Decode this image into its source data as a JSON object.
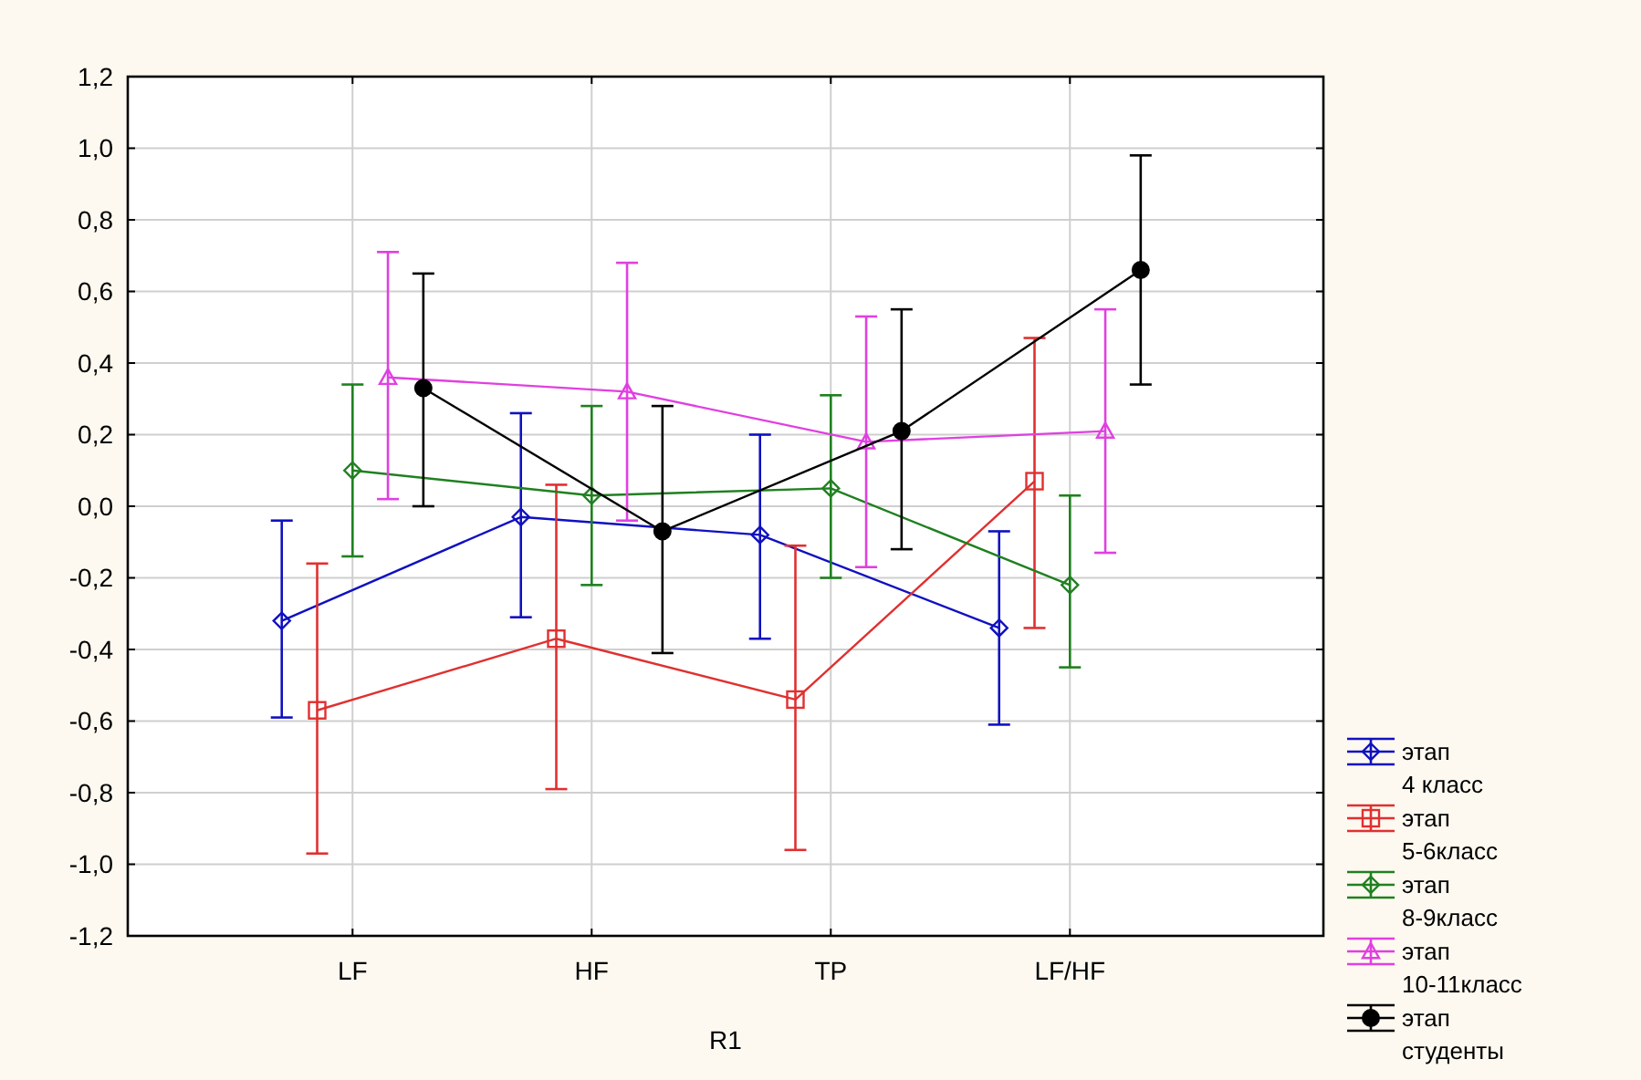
{
  "chart_data": {
    "type": "line",
    "xlabel": "R1",
    "categories": [
      "LF",
      "HF",
      "TP",
      "LF/HF"
    ],
    "ylim": [
      -1.2,
      1.2
    ],
    "yticks": [
      {
        "value": -1.2,
        "label": "-1,2"
      },
      {
        "value": -1.0,
        "label": "-1,0"
      },
      {
        "value": -0.8,
        "label": "-0,8"
      },
      {
        "value": -0.6,
        "label": "-0,6"
      },
      {
        "value": -0.4,
        "label": "-0,4"
      },
      {
        "value": -0.2,
        "label": "-0,2"
      },
      {
        "value": 0,
        "label": "0,0"
      },
      {
        "value": 0.2,
        "label": "0,2"
      },
      {
        "value": 0.4,
        "label": "0,4"
      },
      {
        "value": 0.6,
        "label": "0,6"
      },
      {
        "value": 0.8,
        "label": "0,8"
      },
      {
        "value": 1.0,
        "label": "1,0"
      },
      {
        "value": 1.2,
        "label": "1,2"
      }
    ],
    "grid": true,
    "legend": "right",
    "line_style": "solid",
    "series": [
      {
        "name": "этап 4 класс",
        "color": "#1010c0",
        "marker": "diamond",
        "values": [
          -0.32,
          -0.03,
          -0.08,
          -0.34
        ],
        "errors": [
          [
            -0.59,
            -0.04
          ],
          [
            -0.31,
            0.26
          ],
          [
            -0.37,
            0.2
          ],
          [
            -0.61,
            -0.07
          ]
        ]
      },
      {
        "name": "этап 5-6класс",
        "color": "#e03030",
        "marker": "square",
        "values": [
          -0.57,
          -0.37,
          -0.54,
          0.07
        ],
        "errors": [
          [
            -0.97,
            -0.16
          ],
          [
            -0.79,
            0.06
          ],
          [
            -0.96,
            -0.11
          ],
          [
            -0.34,
            0.47
          ]
        ]
      },
      {
        "name": "этап 8-9класс",
        "color": "#208020",
        "marker": "diamond",
        "values": [
          0.1,
          0.03,
          0.05,
          -0.22
        ],
        "errors": [
          [
            -0.14,
            0.34
          ],
          [
            -0.22,
            0.28
          ],
          [
            -0.2,
            0.31
          ],
          [
            -0.45,
            0.03
          ]
        ]
      },
      {
        "name": "этап 10-11класс",
        "color": "#e040e0",
        "marker": "triangle",
        "values": [
          0.36,
          0.32,
          0.18,
          0.21
        ],
        "errors": [
          [
            0.02,
            0.71
          ],
          [
            -0.04,
            0.68
          ],
          [
            -0.17,
            0.53
          ],
          [
            -0.13,
            0.55
          ]
        ]
      },
      {
        "name": "этап студенты",
        "color": "#000000",
        "marker": "circle",
        "values": [
          0.33,
          -0.07,
          0.21,
          0.66
        ],
        "errors": [
          [
            0.0,
            0.65
          ],
          [
            -0.41,
            0.28
          ],
          [
            -0.12,
            0.55
          ],
          [
            0.34,
            0.98
          ]
        ]
      }
    ]
  }
}
